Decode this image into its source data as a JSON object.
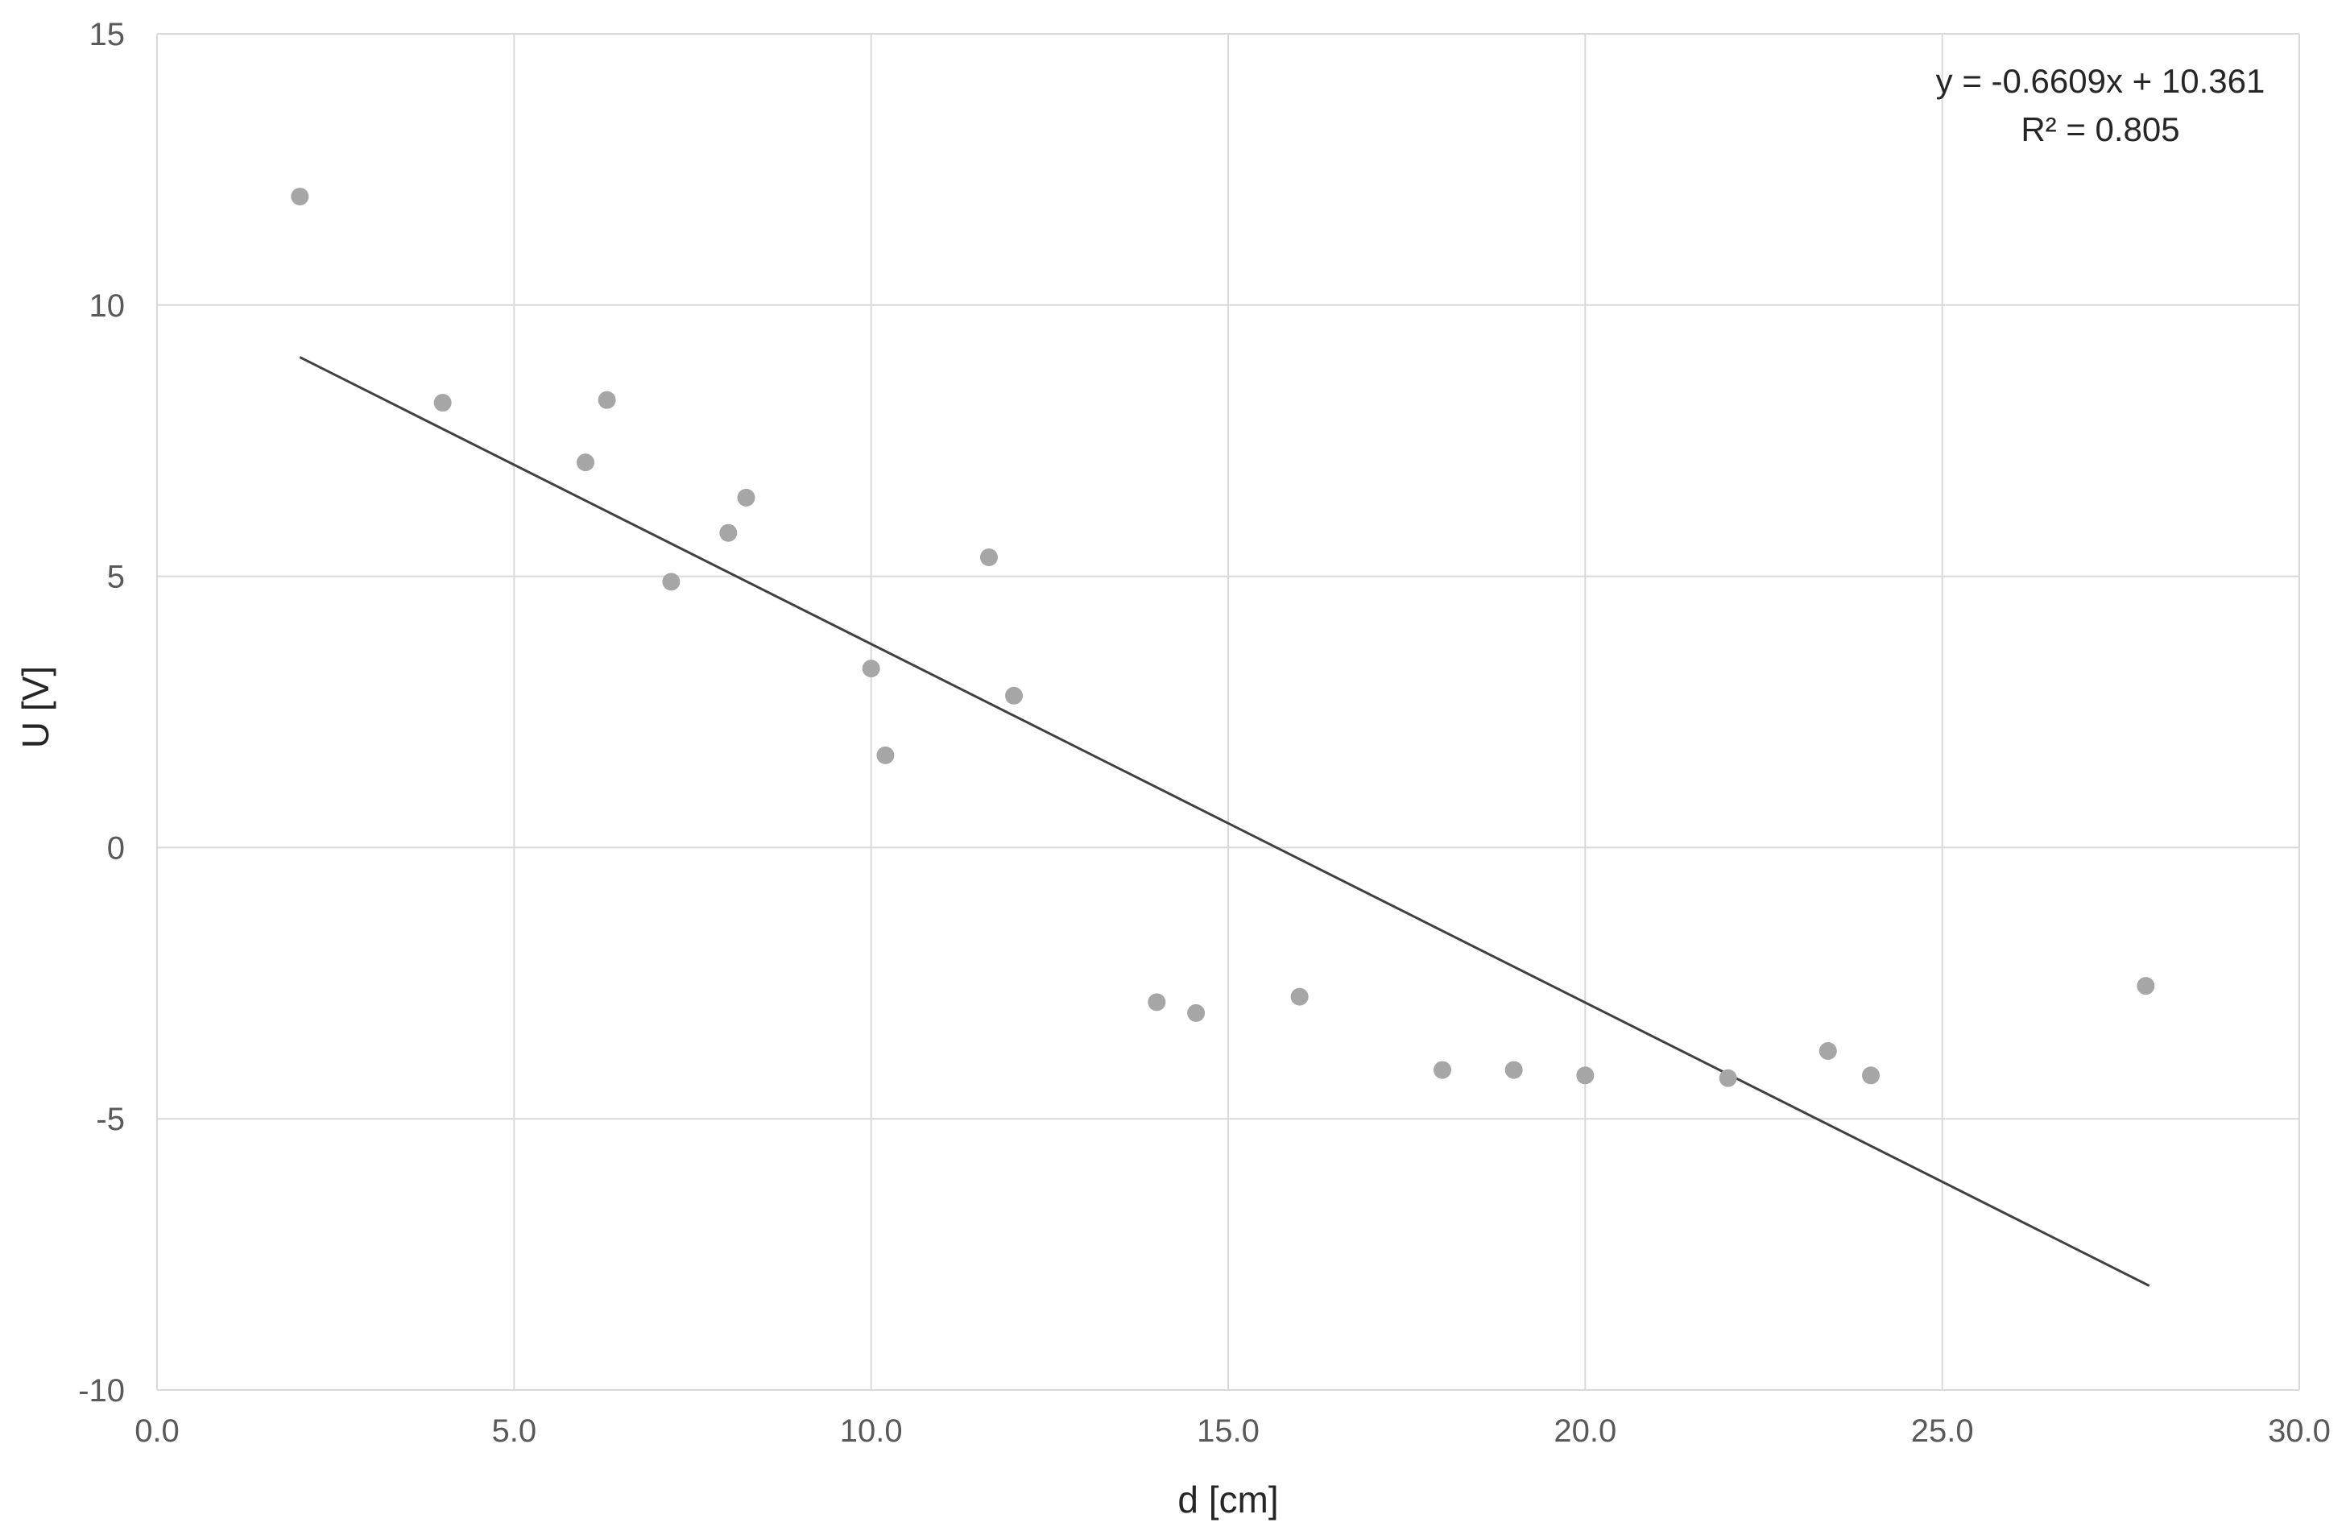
{
  "chart_data": {
    "type": "scatter",
    "title": "",
    "xlabel": "d [cm]",
    "ylabel": "U [V]",
    "xlim": [
      0,
      30
    ],
    "ylim": [
      -10,
      15
    ],
    "x_ticks": [
      "0.0",
      "5.0",
      "10.0",
      "15.0",
      "20.0",
      "25.0",
      "30.0"
    ],
    "y_ticks": [
      "-10",
      "-5",
      "0",
      "5",
      "10",
      "15"
    ],
    "grid": true,
    "legend": "none",
    "colors": {
      "points": "#a6a6a6",
      "trendline": "#404040",
      "grid": "#d9d9d9"
    },
    "series": [
      {
        "points": [
          {
            "x": 2.0,
            "y": 12.0
          },
          {
            "x": 4.0,
            "y": 8.2
          },
          {
            "x": 6.0,
            "y": 7.1
          },
          {
            "x": 6.3,
            "y": 8.25
          },
          {
            "x": 7.2,
            "y": 4.9
          },
          {
            "x": 8.0,
            "y": 5.8
          },
          {
            "x": 8.25,
            "y": 6.45
          },
          {
            "x": 10.0,
            "y": 3.3
          },
          {
            "x": 10.2,
            "y": 1.7
          },
          {
            "x": 11.65,
            "y": 5.35
          },
          {
            "x": 12.0,
            "y": 2.8
          },
          {
            "x": 14.0,
            "y": -2.85
          },
          {
            "x": 14.55,
            "y": -3.05
          },
          {
            "x": 16.0,
            "y": -2.75
          },
          {
            "x": 18.0,
            "y": -4.1
          },
          {
            "x": 19.0,
            "y": -4.1
          },
          {
            "x": 20.0,
            "y": -4.2
          },
          {
            "x": 22.0,
            "y": -4.25
          },
          {
            "x": 23.4,
            "y": -3.75
          },
          {
            "x": 24.0,
            "y": -4.2
          },
          {
            "x": 27.85,
            "y": -2.55
          }
        ]
      }
    ],
    "trendline": {
      "slope": -0.6609,
      "intercept": 10.361,
      "x_range": [
        2.0,
        27.9
      ],
      "equation": "y = -0.6609x + 10.361",
      "r_squared": "R² = 0.805"
    }
  }
}
